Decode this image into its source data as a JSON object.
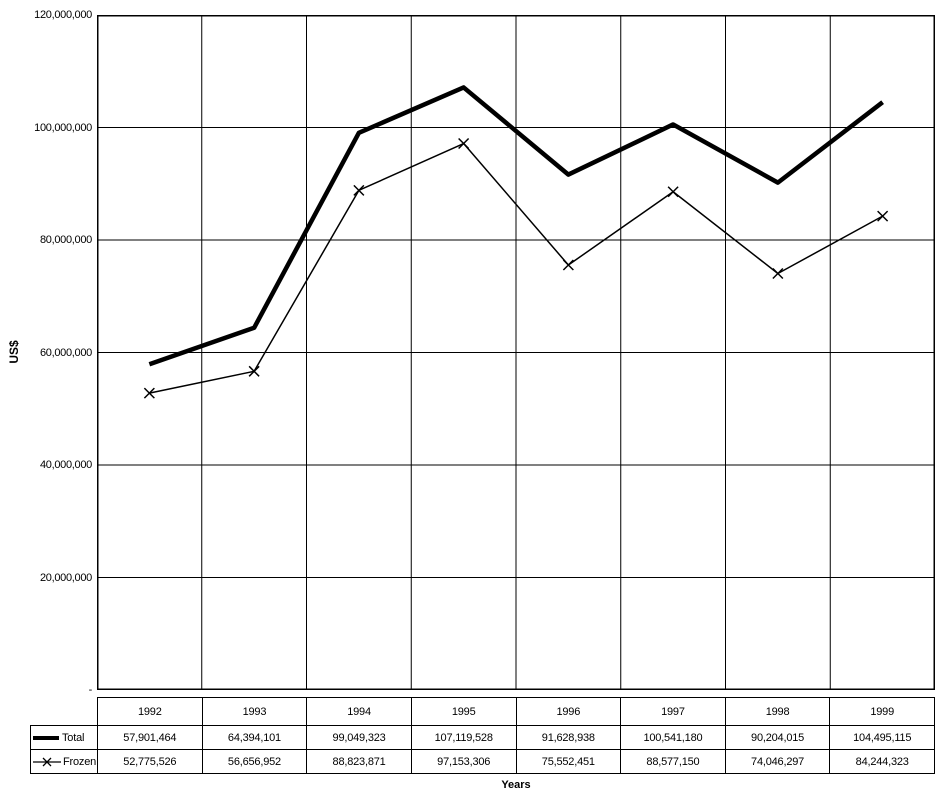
{
  "chart_data": {
    "type": "line",
    "title": "",
    "xlabel": "Years",
    "ylabel": "US$",
    "ylim": [
      0,
      120000000
    ],
    "ytick_interval": 20000000,
    "ytick_labels": [
      "-",
      "20,000,000",
      "40,000,000",
      "60,000,000",
      "80,000,000",
      "100,000,000",
      "120,000,000"
    ],
    "grid": true,
    "legend_position": "table-left",
    "categories": [
      "1992",
      "1993",
      "1994",
      "1995",
      "1996",
      "1997",
      "1998",
      "1999"
    ],
    "series": [
      {
        "name": "Total",
        "style": "thick",
        "values": [
          57901464,
          64394101,
          99049323,
          107119528,
          91628938,
          100541180,
          90204015,
          104495115
        ]
      },
      {
        "name": "Frozen",
        "style": "thin-x",
        "values": [
          52775526,
          56656952,
          88823871,
          97153306,
          75552451,
          88577150,
          74046297,
          84244323
        ]
      }
    ]
  },
  "table": {
    "years": [
      "1992",
      "1993",
      "1994",
      "1995",
      "1996",
      "1997",
      "1998",
      "1999"
    ],
    "rows": [
      {
        "label": "Total",
        "values": [
          "57,901,464",
          "64,394,101",
          "99,049,323",
          "107,119,528",
          "91,628,938",
          "100,541,180",
          "90,204,015",
          "104,495,115"
        ]
      },
      {
        "label": "Frozen",
        "values": [
          "52,775,526",
          "56,656,952",
          "88,823,871",
          "97,153,306",
          "75,552,451",
          "88,577,150",
          "74,046,297",
          "84,244,323"
        ]
      }
    ]
  }
}
